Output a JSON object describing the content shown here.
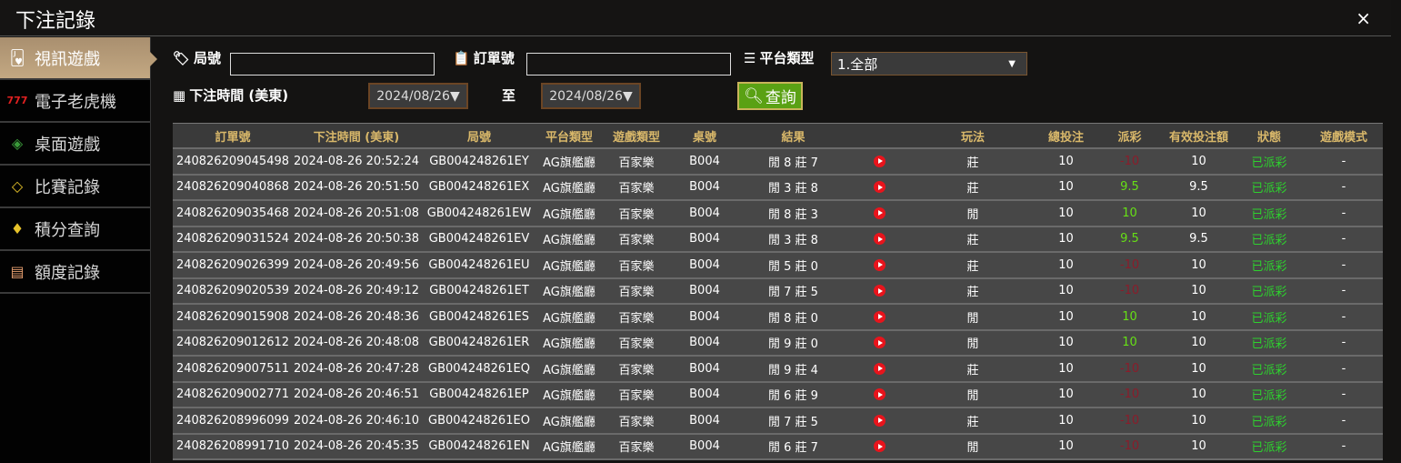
{
  "window": {
    "title": "下注記錄",
    "close": "×"
  },
  "sidebar": {
    "items": [
      {
        "label": "視訊遊戲",
        "icon": "playing-cards-icon",
        "active": true,
        "glyph": "🂻"
      },
      {
        "label": "電子老虎機",
        "icon": "slot-777-icon",
        "glyph": "777"
      },
      {
        "label": "桌面遊戲",
        "icon": "chips-icon",
        "glyph": "◈"
      },
      {
        "label": "比賽記錄",
        "icon": "ticket-icon",
        "glyph": "◇"
      },
      {
        "label": "積分查詢",
        "icon": "diamond-icon",
        "glyph": "♦"
      },
      {
        "label": "額度記錄",
        "icon": "document-icon",
        "glyph": "▤"
      }
    ]
  },
  "filters": {
    "round_label": "局號",
    "round_value": "",
    "order_label": "訂單號",
    "order_value": "",
    "platform_label": "平台類型",
    "platform_selected": "1.全部",
    "time_label": "下注時間 (美東)",
    "date_from": "2024/08/26▼",
    "to_label": "至",
    "date_to": "2024/08/26▼",
    "search_label": "查詢"
  },
  "table": {
    "headers": [
      "訂單號",
      "下注時間 (美東)",
      "局號",
      "平台類型",
      "遊戲類型",
      "桌號",
      "結果",
      "",
      "玩法",
      "總投注",
      "派彩",
      "有效投注額",
      "狀態",
      "遊戲模式"
    ],
    "rows": [
      [
        "240826209045498",
        "2024-08-26 20:52:24",
        "GB004248261EY",
        "AG旗艦廳",
        "百家樂",
        "B004",
        "閒 8 莊 7",
        "",
        "莊",
        "10",
        "-10",
        "10",
        "已派彩",
        "-"
      ],
      [
        "240826209040868",
        "2024-08-26 20:51:50",
        "GB004248261EX",
        "AG旗艦廳",
        "百家樂",
        "B004",
        "閒 3 莊 8",
        "",
        "莊",
        "10",
        "9.5",
        "9.5",
        "已派彩",
        "-"
      ],
      [
        "240826209035468",
        "2024-08-26 20:51:08",
        "GB004248261EW",
        "AG旗艦廳",
        "百家樂",
        "B004",
        "閒 8 莊 3",
        "",
        "閒",
        "10",
        "10",
        "10",
        "已派彩",
        "-"
      ],
      [
        "240826209031524",
        "2024-08-26 20:50:38",
        "GB004248261EV",
        "AG旗艦廳",
        "百家樂",
        "B004",
        "閒 3 莊 8",
        "",
        "莊",
        "10",
        "9.5",
        "9.5",
        "已派彩",
        "-"
      ],
      [
        "240826209026399",
        "2024-08-26 20:49:56",
        "GB004248261EU",
        "AG旗艦廳",
        "百家樂",
        "B004",
        "閒 5 莊 0",
        "",
        "莊",
        "10",
        "-10",
        "10",
        "已派彩",
        "-"
      ],
      [
        "240826209020539",
        "2024-08-26 20:49:12",
        "GB004248261ET",
        "AG旗艦廳",
        "百家樂",
        "B004",
        "閒 7 莊 5",
        "",
        "莊",
        "10",
        "-10",
        "10",
        "已派彩",
        "-"
      ],
      [
        "240826209015908",
        "2024-08-26 20:48:36",
        "GB004248261ES",
        "AG旗艦廳",
        "百家樂",
        "B004",
        "閒 8 莊 0",
        "",
        "閒",
        "10",
        "10",
        "10",
        "已派彩",
        "-"
      ],
      [
        "240826209012612",
        "2024-08-26 20:48:08",
        "GB004248261ER",
        "AG旗艦廳",
        "百家樂",
        "B004",
        "閒 9 莊 0",
        "",
        "閒",
        "10",
        "10",
        "10",
        "已派彩",
        "-"
      ],
      [
        "240826209007511",
        "2024-08-26 20:47:28",
        "GB004248261EQ",
        "AG旗艦廳",
        "百家樂",
        "B004",
        "閒 9 莊 4",
        "",
        "莊",
        "10",
        "-10",
        "10",
        "已派彩",
        "-"
      ],
      [
        "240826209002771",
        "2024-08-26 20:46:51",
        "GB004248261EP",
        "AG旗艦廳",
        "百家樂",
        "B004",
        "閒 6 莊 9",
        "",
        "閒",
        "10",
        "-10",
        "10",
        "已派彩",
        "-"
      ],
      [
        "240826208996099",
        "2024-08-26 20:46:10",
        "GB004248261EO",
        "AG旗艦廳",
        "百家樂",
        "B004",
        "閒 7 莊 5",
        "",
        "莊",
        "10",
        "-10",
        "10",
        "已派彩",
        "-"
      ],
      [
        "240826208991710",
        "2024-08-26 20:45:35",
        "GB004248261EN",
        "AG旗艦廳",
        "百家樂",
        "B004",
        "閒 6 莊 7",
        "",
        "閒",
        "10",
        "-10",
        "10",
        "已派彩",
        "-"
      ]
    ]
  },
  "colors": {
    "header_text": "#d9b86a",
    "negative": "#8b1c2a",
    "positive": "#66e016",
    "status": "#2ed12e",
    "search_button": "#5aa114"
  }
}
